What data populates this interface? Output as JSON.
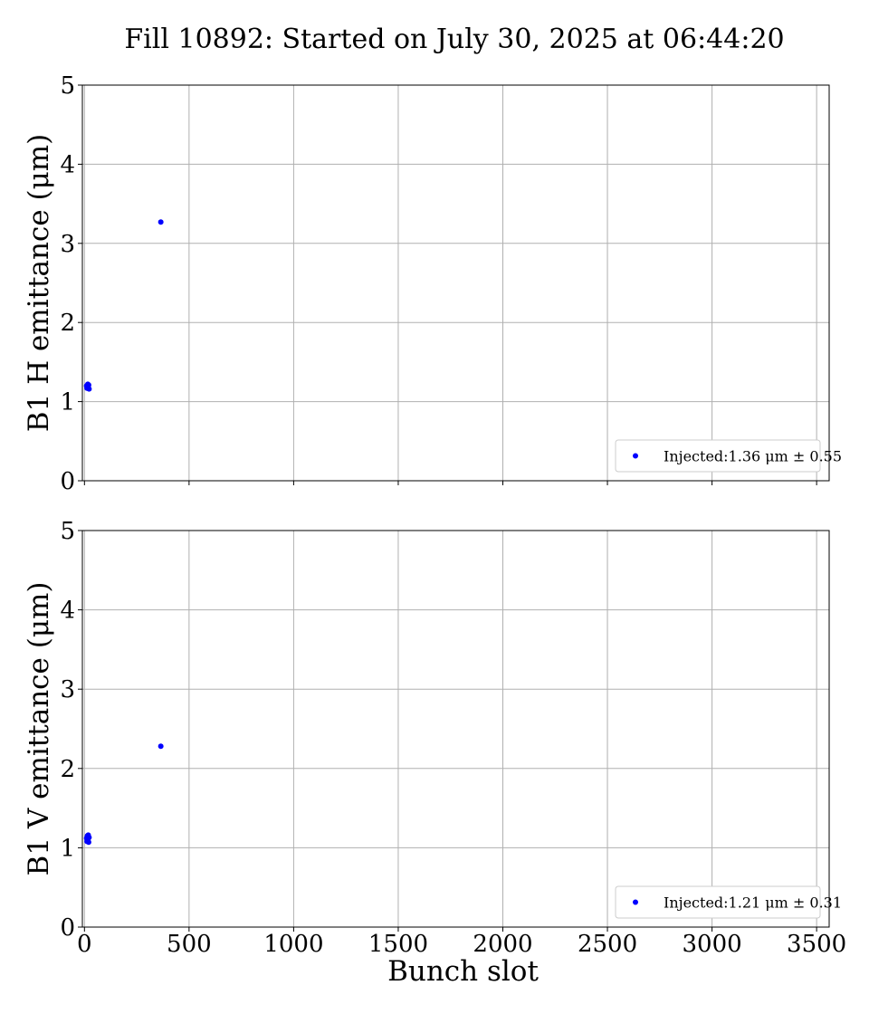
{
  "figure": {
    "title": "Fill 10892: Started on July 30, 2025 at 06:44:20"
  },
  "chart_data": [
    {
      "type": "scatter",
      "xlabel": "",
      "ylabel": "B1 H emittance (μm)",
      "xlim": [
        -10,
        3560
      ],
      "ylim": [
        0,
        5
      ],
      "xticks": [
        0,
        500,
        1000,
        1500,
        2000,
        2500,
        3000,
        3500
      ],
      "yticks": [
        0,
        1,
        2,
        3,
        4,
        5
      ],
      "show_xtick_labels": false,
      "grid": true,
      "legend_position": "bottom-right",
      "series": [
        {
          "name": "Injected:1.36 μm ± 0.55",
          "color": "#0000ff",
          "points": [
            {
              "x": 10,
              "y": 1.2
            },
            {
              "x": 12,
              "y": 1.17
            },
            {
              "x": 14,
              "y": 1.19
            },
            {
              "x": 16,
              "y": 1.22
            },
            {
              "x": 18,
              "y": 1.18
            },
            {
              "x": 20,
              "y": 1.21
            },
            {
              "x": 22,
              "y": 1.16
            },
            {
              "x": 365,
              "y": 3.27
            }
          ]
        }
      ]
    },
    {
      "type": "scatter",
      "xlabel": "Bunch slot",
      "ylabel": "B1 V emittance (μm)",
      "xlim": [
        -10,
        3560
      ],
      "ylim": [
        0,
        5
      ],
      "xticks": [
        0,
        500,
        1000,
        1500,
        2000,
        2500,
        3000,
        3500
      ],
      "yticks": [
        0,
        1,
        2,
        3,
        4,
        5
      ],
      "show_xtick_labels": true,
      "grid": true,
      "legend_position": "bottom-right",
      "series": [
        {
          "name": "Injected:1.21 μm ± 0.31",
          "color": "#0000ff",
          "points": [
            {
              "x": 10,
              "y": 1.12
            },
            {
              "x": 12,
              "y": 1.08
            },
            {
              "x": 14,
              "y": 1.15
            },
            {
              "x": 16,
              "y": 1.1
            },
            {
              "x": 18,
              "y": 1.16
            },
            {
              "x": 20,
              "y": 1.07
            },
            {
              "x": 22,
              "y": 1.13
            },
            {
              "x": 365,
              "y": 2.28
            }
          ]
        }
      ]
    }
  ]
}
